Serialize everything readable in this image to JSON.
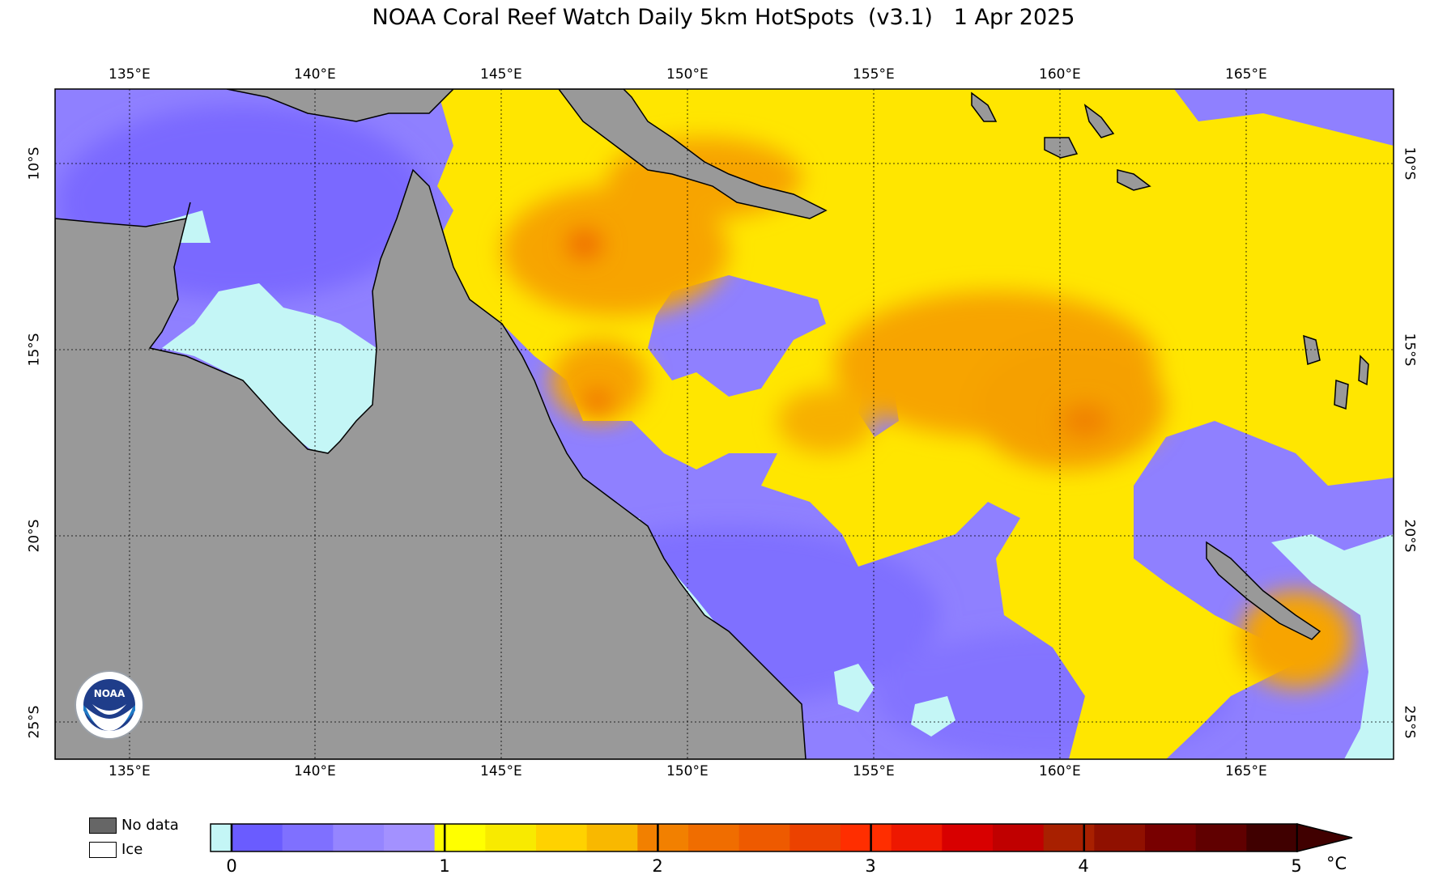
{
  "title": "NOAA Coral Reef Watch Daily 5km HotSpots  (v3.1)   1 Apr 2025",
  "axes": {
    "longitude_ticks": [
      "135°E",
      "140°E",
      "145°E",
      "150°E",
      "155°E",
      "160°E",
      "165°E"
    ],
    "latitude_ticks": [
      "10°S",
      "15°S",
      "20°S",
      "25°S"
    ]
  },
  "map": {
    "lon_range": [
      133,
      169
    ],
    "lat_range": [
      -8,
      -26
    ],
    "colors": {
      "land": "#999999",
      "no_data": "#666666",
      "ice": "#ffffff",
      "hotspot_0": "#c4f6f6",
      "hotspot_0_1": "#8f80ff",
      "hotspot_1_2": "#ffd200",
      "hotspot_2_3": "#f28000",
      "coast": "#000000"
    }
  },
  "legend": {
    "no_data_label": "No data",
    "ice_label": "Ice"
  },
  "colorbar": {
    "ticks": [
      "0",
      "1",
      "2",
      "3",
      "4",
      "5"
    ],
    "unit": "°C",
    "colors": [
      "#c4f6f6",
      "#6a5cff",
      "#7f70ff",
      "#9585ff",
      "#a391ff",
      "#ffff00",
      "#f8ea00",
      "#ffd200",
      "#f9b800",
      "#f28000",
      "#f06d00",
      "#ee5a00",
      "#ec4200",
      "#ff2e00",
      "#ee1800",
      "#d80000",
      "#c00000",
      "#a82000",
      "#901000",
      "#780000",
      "#600000",
      "#400000"
    ]
  },
  "logo": {
    "text": "NOAA"
  }
}
